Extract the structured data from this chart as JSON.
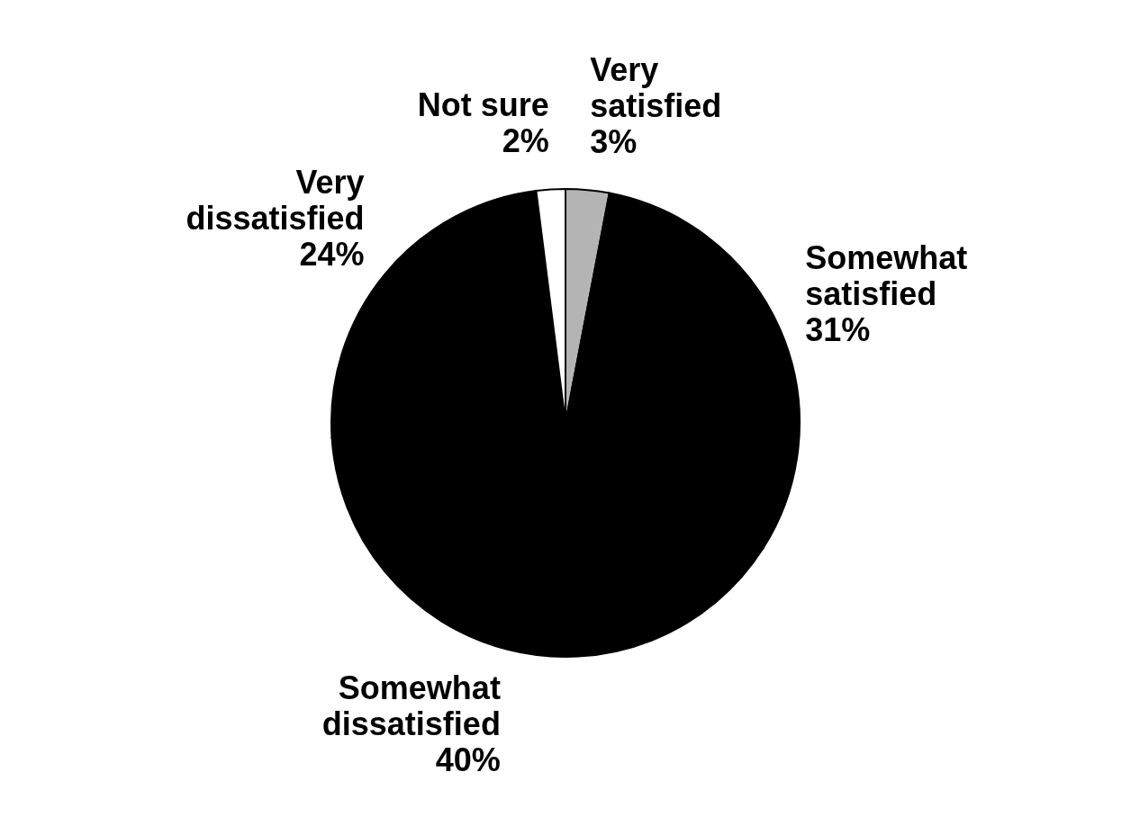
{
  "chart_data": {
    "type": "pie",
    "categories": [
      "Very satisfied",
      "Somewhat satisfied",
      "Somewhat dissatisfied",
      "Very dissatisfied",
      "Not sure"
    ],
    "values": [
      3,
      31,
      40,
      24,
      2
    ],
    "value_labels": [
      "3%",
      "31%",
      "40%",
      "24%",
      "2%"
    ],
    "colors": [
      "#b4b4b4",
      "#000000",
      "#000000",
      "#000000",
      "#ffffff"
    ]
  }
}
